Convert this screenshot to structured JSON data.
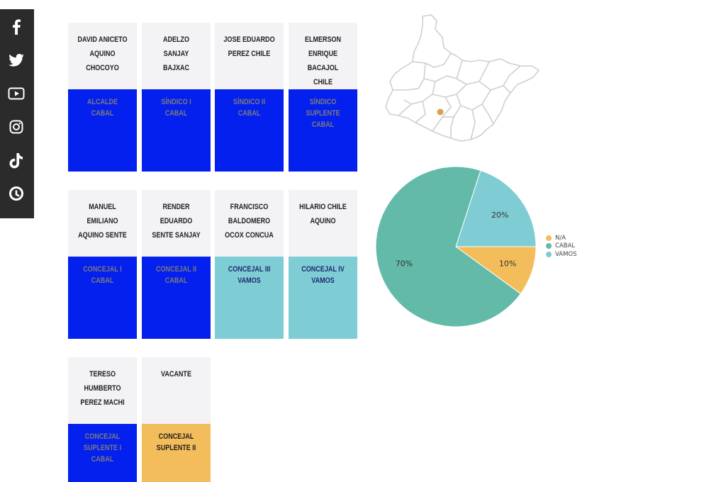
{
  "colors": {
    "cabal": "#0420ee",
    "vamos": "#7ecdd5",
    "na": "#f3bd5b",
    "cabal_text": "#7a7a7a",
    "vamos_text": "#1f2b6e",
    "na_text": "#1f1f1f",
    "pie_cabal": "#63baa8",
    "pie_vamos": "#80ccd4",
    "pie_na": "#f3bd5b"
  },
  "social": {
    "icons": [
      "facebook-icon",
      "twitter-icon",
      "youtube-icon",
      "instagram-icon",
      "tiktok-icon",
      "app-icon"
    ]
  },
  "cards": [
    {
      "name": "DAVID ANICETO AQUINO CHOCOYO",
      "role": "ALCALDE",
      "party": "CABAL",
      "party_key": "cabal"
    },
    {
      "name": "ADELZO SANJAY BAJXAC",
      "role": "SÍNDICO I",
      "party": "CABAL",
      "party_key": "cabal"
    },
    {
      "name": "JOSE EDUARDO PEREZ CHILE",
      "role": "SÍNDICO II",
      "party": "CABAL",
      "party_key": "cabal"
    },
    {
      "name": "ELMERSON ENRIQUE BACAJOL CHILE",
      "role": "SÍNDICO SUPLENTE",
      "party": "CABAL",
      "party_key": "cabal"
    },
    {
      "name": "MANUEL EMILIANO AQUINO SENTE",
      "role": "CONCEJAL I",
      "party": "CABAL",
      "party_key": "cabal"
    },
    {
      "name": "RENDER EDUARDO SENTE SANJAY",
      "role": "CONCEJAL II",
      "party": "CABAL",
      "party_key": "cabal"
    },
    {
      "name": "FRANCISCO BALDOMERO OCOX CONCUA",
      "role": "CONCEJAL III",
      "party": "VAMOS",
      "party_key": "vamos"
    },
    {
      "name": "HILARIO CHILE AQUINO",
      "role": "CONCEJAL IV",
      "party": "VAMOS",
      "party_key": "vamos"
    },
    {
      "name": "TERESO HUMBERTO PEREZ MACHI",
      "role": "CONCEJAL SUPLENTE I",
      "party": "CABAL",
      "party_key": "cabal"
    },
    {
      "name": "VACANTE",
      "role": "CONCEJAL SUPLENTE II",
      "party": "",
      "party_key": "na"
    }
  ],
  "chart_data": {
    "type": "pie",
    "series": [
      {
        "name": "N/A",
        "value": 10,
        "label": "10%",
        "color": "#f3bd5b"
      },
      {
        "name": "CABAL",
        "value": 70,
        "label": "70%",
        "color": "#63baa8"
      },
      {
        "name": "VAMOS",
        "value": 20,
        "label": "20%",
        "color": "#80ccd4"
      }
    ],
    "legend_position": "right"
  }
}
